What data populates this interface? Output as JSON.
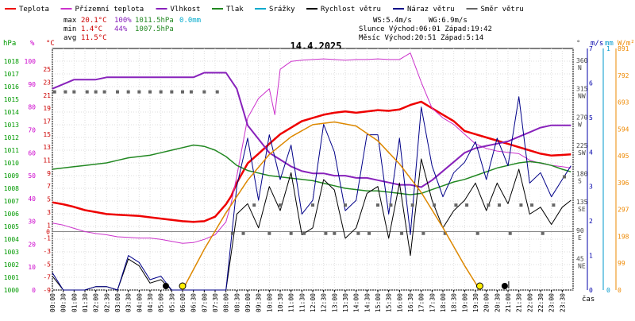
{
  "colors": {
    "temperature": "#ee0000",
    "dew_point": "#cc33cc",
    "humidity": "#8822bb",
    "pressure": "#228822",
    "precip": "#00aacc",
    "wind_speed": "#000000",
    "wind_gust": "#000088",
    "wind_dir": "#666666",
    "sun": "#dd8800",
    "hpa_axis": "#009900",
    "percent_axis": "#cc00cc",
    "celsius_axis": "#cc0000",
    "wind_axis": "#0000aa",
    "mm_axis": "#0099cc",
    "wm2_axis": "#ee8800"
  },
  "legend": [
    {
      "label": "Teplota",
      "color_key": "temperature"
    },
    {
      "label": "Přízemní teplota",
      "color_key": "dew_point"
    },
    {
      "label": "Vlhkost",
      "color_key": "humidity"
    },
    {
      "label": "Tlak",
      "color_key": "pressure"
    },
    {
      "label": "Srážky",
      "color_key": "precip"
    },
    {
      "label": "Rychlost větru",
      "color_key": "wind_speed"
    },
    {
      "label": "Náraz větru",
      "color_key": "wind_gust"
    },
    {
      "label": "Směr větru",
      "color_key": "wind_dir"
    }
  ],
  "stats": {
    "max_label": "max",
    "min_label": "min",
    "avg_label": "avg",
    "max_temp": "20.1°C",
    "min_temp": "1.4°C",
    "avg_temp": "11.5°C",
    "max_hum": "100%",
    "min_hum": "44%",
    "max_press": "1011.5hPa",
    "min_press": "1007.5hPa",
    "precip_total": "0.0mm",
    "ws": "WS:5.4m/s",
    "wg": "WG:6.9m/s",
    "sun_line": "Slunce Východ:06:01  Západ:19:42",
    "moon_line": "Měsíc  Východ:20:51  Západ:5:14"
  },
  "axis_units": {
    "hpa": "hPa",
    "percent": "%",
    "celsius": "°C",
    "degree": "°",
    "ms": "m/s",
    "mm": "mm",
    "wm2": "W/m²",
    "cas": "čas"
  },
  "chart_data": {
    "type": "line",
    "title": "14.4.2025",
    "xlabel": "čas",
    "x_ticks": [
      "00:00",
      "00:30",
      "01:00",
      "01:30",
      "02:00",
      "02:30",
      "03:00",
      "03:30",
      "04:00",
      "04:30",
      "05:00",
      "05:30",
      "06:00",
      "06:30",
      "07:00",
      "07:30",
      "08:00",
      "08:30",
      "09:00",
      "09:30",
      "10:00",
      "10:30",
      "11:00",
      "11:30",
      "12:00",
      "12:30",
      "13:00",
      "13:30",
      "14:00",
      "14:30",
      "15:00",
      "15:30",
      "16:00",
      "16:30",
      "17:00",
      "17:30",
      "18:00",
      "18:30",
      "19:00",
      "19:30",
      "20:00",
      "20:30",
      "21:00",
      "21:30",
      "22:00",
      "22:30",
      "23:00",
      "23:30"
    ],
    "axes": {
      "pressure_hpa": {
        "ticks": [
          1000,
          1001,
          1002,
          1003,
          1004,
          1005,
          1006,
          1007,
          1008,
          1009,
          1010,
          1011,
          1012,
          1013,
          1014,
          1015,
          1016,
          1017,
          1018
        ],
        "ylim": [
          1000,
          1019
        ]
      },
      "humidity_pct": {
        "ticks": [
          0,
          10,
          20,
          30,
          40,
          50,
          60,
          70,
          80,
          90,
          100
        ],
        "ylim": [
          0,
          105.6
        ]
      },
      "temperature_c": {
        "ticks": [
          -9,
          -7,
          -5,
          -3,
          -1,
          1,
          3,
          5,
          7,
          9,
          11,
          13,
          15,
          17,
          19,
          21,
          23,
          25
        ],
        "ylim": [
          -9,
          28.2
        ]
      },
      "wind_dir_deg": {
        "ticks": [
          45,
          90,
          135,
          180,
          225,
          270,
          315,
          360
        ],
        "ylim": [
          0,
          384
        ],
        "compass": [
          "NE",
          "E",
          "SE",
          "S",
          "SW",
          "W",
          "NW",
          "N"
        ]
      },
      "wind_ms": {
        "ticks": [
          0,
          1,
          2,
          3,
          4,
          5,
          6,
          7
        ],
        "ylim": [
          0,
          7
        ]
      },
      "precip_mm": {
        "ticks": [
          0,
          1
        ],
        "ylim": [
          0,
          1
        ]
      },
      "radiation_wm2": {
        "ticks": [
          0,
          99,
          198,
          297,
          396,
          495,
          594,
          693,
          792,
          891
        ],
        "ylim": [
          0,
          891
        ]
      }
    },
    "series": [
      {
        "name": "Teplota",
        "axis": "temperature_c",
        "x": [
          0,
          0.5,
          1,
          1.5,
          2,
          2.5,
          3,
          3.5,
          4,
          4.5,
          5,
          5.5,
          6,
          6.5,
          7,
          7.5,
          8,
          8.25,
          8.5,
          9,
          9.5,
          10,
          10.5,
          11,
          11.5,
          12,
          12.5,
          13,
          13.5,
          14,
          14.5,
          15,
          15.5,
          16,
          16.5,
          17,
          17.5,
          18,
          18.5,
          19,
          19.5,
          20,
          20.5,
          21,
          21.5,
          22,
          22.5,
          23,
          23.5,
          23.9
        ],
        "y": [
          4.5,
          4.2,
          3.8,
          3.3,
          3.0,
          2.7,
          2.6,
          2.5,
          2.4,
          2.2,
          2.0,
          1.8,
          1.6,
          1.5,
          1.6,
          2.3,
          4.2,
          5.5,
          7.5,
          10.5,
          12.0,
          13.5,
          15.0,
          16.0,
          17.0,
          17.5,
          18.0,
          18.3,
          18.5,
          18.3,
          18.5,
          18.7,
          18.6,
          18.8,
          19.5,
          20.0,
          19.0,
          18.0,
          17.0,
          15.5,
          15.0,
          14.5,
          14.0,
          13.5,
          13.0,
          12.5,
          12.0,
          11.7,
          11.8,
          11.9
        ]
      },
      {
        "name": "Přízemní teplota",
        "axis": "temperature_c",
        "x": [
          0,
          0.5,
          1,
          1.5,
          2,
          2.5,
          3,
          3.5,
          4,
          4.5,
          5,
          5.5,
          6,
          6.5,
          7,
          7.5,
          8,
          8.25,
          8.5,
          9,
          9.5,
          10,
          10.25,
          10.5,
          11,
          11.5,
          12,
          12.5,
          13,
          13.5,
          14,
          14.5,
          15,
          15.5,
          16,
          16.5,
          17,
          17.5,
          18,
          18.5,
          19,
          19.5,
          20,
          20.5,
          21,
          21.5,
          22,
          22.5,
          23,
          23.5,
          23.9
        ],
        "y": [
          1.3,
          1.0,
          0.5,
          0.0,
          -0.3,
          -0.5,
          -0.8,
          -0.9,
          -1.0,
          -1.0,
          -1.2,
          -1.5,
          -1.8,
          -1.7,
          -1.2,
          -0.5,
          1.5,
          4.5,
          8.5,
          17.5,
          20.5,
          22.0,
          18.0,
          25.0,
          26.2,
          26.4,
          26.5,
          26.6,
          26.5,
          26.4,
          26.5,
          26.5,
          26.6,
          26.5,
          26.5,
          27.5,
          23.0,
          19.0,
          17.5,
          16.5,
          15.0,
          13.5,
          12.8,
          12.4,
          12.2,
          12.0,
          11.0,
          10.5,
          10.2,
          10.0,
          9.8
        ]
      },
      {
        "name": "Vlhkost",
        "axis": "humidity_pct",
        "x": [
          0,
          0.5,
          1,
          1.5,
          2,
          2.5,
          3,
          3.5,
          4,
          4.5,
          5,
          5.5,
          6,
          6.5,
          7,
          7.5,
          8,
          8.5,
          9,
          9.5,
          10,
          10.5,
          11,
          11.5,
          12,
          12.5,
          13,
          13.5,
          14,
          14.5,
          15,
          15.5,
          16,
          16.5,
          17,
          17.5,
          18,
          18.5,
          19,
          19.5,
          20,
          20.5,
          21,
          21.5,
          22,
          22.5,
          23,
          23.5,
          23.9
        ],
        "y": [
          88,
          90,
          92,
          92,
          92,
          93,
          93,
          93,
          93,
          93,
          93,
          93,
          93,
          93,
          95,
          95,
          95,
          88,
          72,
          66,
          60,
          57,
          54,
          52,
          51,
          51,
          50,
          50,
          49,
          49,
          48,
          47,
          46,
          46,
          45,
          48,
          52,
          56,
          60,
          62,
          63,
          64,
          65,
          67,
          69,
          71,
          72,
          72,
          72
        ]
      },
      {
        "name": "Tlak",
        "axis": "pressure_hpa",
        "x": [
          0,
          0.5,
          1,
          1.5,
          2,
          2.5,
          3,
          3.5,
          4,
          4.5,
          5,
          5.5,
          6,
          6.5,
          7,
          7.5,
          8,
          8.5,
          9,
          9.5,
          10,
          10.5,
          11,
          11.5,
          12,
          12.5,
          13,
          13.5,
          14,
          14.5,
          15,
          15.5,
          16,
          16.5,
          17,
          17.5,
          18,
          18.5,
          19,
          19.5,
          20,
          20.5,
          21,
          21.5,
          22,
          22.5,
          23,
          23.5,
          23.9
        ],
        "y": [
          1009.5,
          1009.6,
          1009.7,
          1009.8,
          1009.9,
          1010.0,
          1010.2,
          1010.4,
          1010.5,
          1010.6,
          1010.8,
          1011.0,
          1011.2,
          1011.4,
          1011.3,
          1011.0,
          1010.5,
          1009.8,
          1009.4,
          1009.2,
          1009.0,
          1008.9,
          1008.8,
          1008.7,
          1008.6,
          1008.4,
          1008.2,
          1008.0,
          1007.9,
          1007.8,
          1007.8,
          1007.7,
          1007.6,
          1007.5,
          1007.6,
          1007.9,
          1008.2,
          1008.5,
          1008.7,
          1009.0,
          1009.3,
          1009.6,
          1009.8,
          1010.0,
          1010.1,
          1010.0,
          1009.8,
          1009.5,
          1009.3
        ]
      },
      {
        "name": "Rychlost větru",
        "axis": "wind_ms",
        "x": [
          0,
          0.5,
          1,
          1.5,
          2,
          2.5,
          3,
          3.5,
          4,
          4.5,
          5,
          5.5,
          6,
          6.5,
          7,
          7.5,
          8,
          8.5,
          9,
          9.5,
          10,
          10.5,
          11,
          11.5,
          12,
          12.5,
          13,
          13.5,
          14,
          14.5,
          15,
          15.5,
          16,
          16.5,
          17,
          17.5,
          18,
          18.5,
          19,
          19.5,
          20,
          20.5,
          21,
          21.5,
          22,
          22.5,
          23,
          23.5,
          23.9
        ],
        "y": [
          0.4,
          0.0,
          0.0,
          0.0,
          0.1,
          0.1,
          0.0,
          0.9,
          0.7,
          0.2,
          0.3,
          0.0,
          0.0,
          0.0,
          0.0,
          0.0,
          0.0,
          2.2,
          2.5,
          1.8,
          3.0,
          2.3,
          3.4,
          1.6,
          1.8,
          3.2,
          2.9,
          1.5,
          1.8,
          2.8,
          3.0,
          1.5,
          3.1,
          1.0,
          3.8,
          2.6,
          1.8,
          2.3,
          2.6,
          3.1,
          2.3,
          3.1,
          2.5,
          3.5,
          2.2,
          2.4,
          1.9,
          2.4,
          2.6
        ]
      },
      {
        "name": "Náraz větru",
        "axis": "wind_ms",
        "x": [
          0,
          0.5,
          1,
          1.5,
          2,
          2.5,
          3,
          3.5,
          4,
          4.5,
          5,
          5.5,
          6,
          6.5,
          7,
          7.5,
          8,
          8.5,
          9,
          9.5,
          10,
          10.5,
          11,
          11.5,
          12,
          12.5,
          13,
          13.5,
          14,
          14.5,
          15,
          15.5,
          16,
          16.5,
          17,
          17.5,
          18,
          18.5,
          19,
          19.5,
          20,
          20.5,
          21,
          21.5,
          22,
          22.5,
          23,
          23.5,
          23.9
        ],
        "y": [
          0.5,
          0.0,
          0.0,
          0.0,
          0.1,
          0.1,
          0.0,
          1.0,
          0.8,
          0.3,
          0.4,
          0.0,
          0.0,
          0.0,
          0.0,
          0.0,
          0.0,
          3.0,
          4.4,
          2.6,
          4.5,
          3.2,
          4.2,
          2.2,
          2.6,
          4.8,
          4.0,
          2.3,
          2.6,
          4.5,
          4.5,
          2.2,
          4.4,
          1.6,
          5.3,
          3.6,
          2.7,
          3.4,
          3.7,
          4.3,
          3.2,
          4.4,
          3.6,
          5.6,
          3.1,
          3.4,
          2.7,
          3.2,
          3.6
        ]
      },
      {
        "name": "Směr větru",
        "axis": "wind_dir_deg",
        "x": [
          0.1,
          0.6,
          1.0,
          1.6,
          2.0,
          2.4,
          3.0,
          3.5,
          4.0,
          4.5,
          5.0,
          5.5,
          6.0,
          6.4,
          7.0,
          7.6,
          8.3,
          8.8,
          9.3,
          10.0,
          10.5,
          11.0,
          11.6,
          12.0,
          12.6,
          13.0,
          13.5,
          14.1,
          14.6,
          15.0,
          15.6,
          16.1,
          16.6,
          17.1,
          17.6,
          18.1,
          18.6,
          19.1,
          19.6,
          20.1,
          20.6,
          21.1,
          21.6,
          22.1,
          22.6,
          23.1,
          23.6
        ],
        "y": [
          315,
          315,
          315,
          315,
          315,
          315,
          315,
          315,
          315,
          315,
          315,
          315,
          315,
          315,
          315,
          315,
          90,
          90,
          135,
          90,
          135,
          90,
          90,
          135,
          90,
          90,
          135,
          90,
          90,
          135,
          135,
          90,
          135,
          90,
          135,
          90,
          135,
          135,
          90,
          135,
          135,
          90,
          135,
          135,
          90,
          135,
          180
        ]
      },
      {
        "name": "Slunce",
        "axis": "radiation_wm2",
        "x": [
          6.0,
          7,
          8,
          9,
          10,
          11,
          12,
          13,
          14,
          15,
          16,
          17,
          18,
          19,
          19.7
        ],
        "y": [
          0,
          150,
          285,
          405,
          500,
          565,
          610,
          620,
          605,
          550,
          465,
          360,
          230,
          90,
          0
        ]
      }
    ],
    "markers": [
      {
        "name": "sunrise",
        "x": 6.0
      },
      {
        "name": "sunset",
        "x": 19.7
      },
      {
        "name": "moonrise",
        "x": 20.85
      },
      {
        "name": "moonset",
        "x": 5.23
      }
    ]
  }
}
